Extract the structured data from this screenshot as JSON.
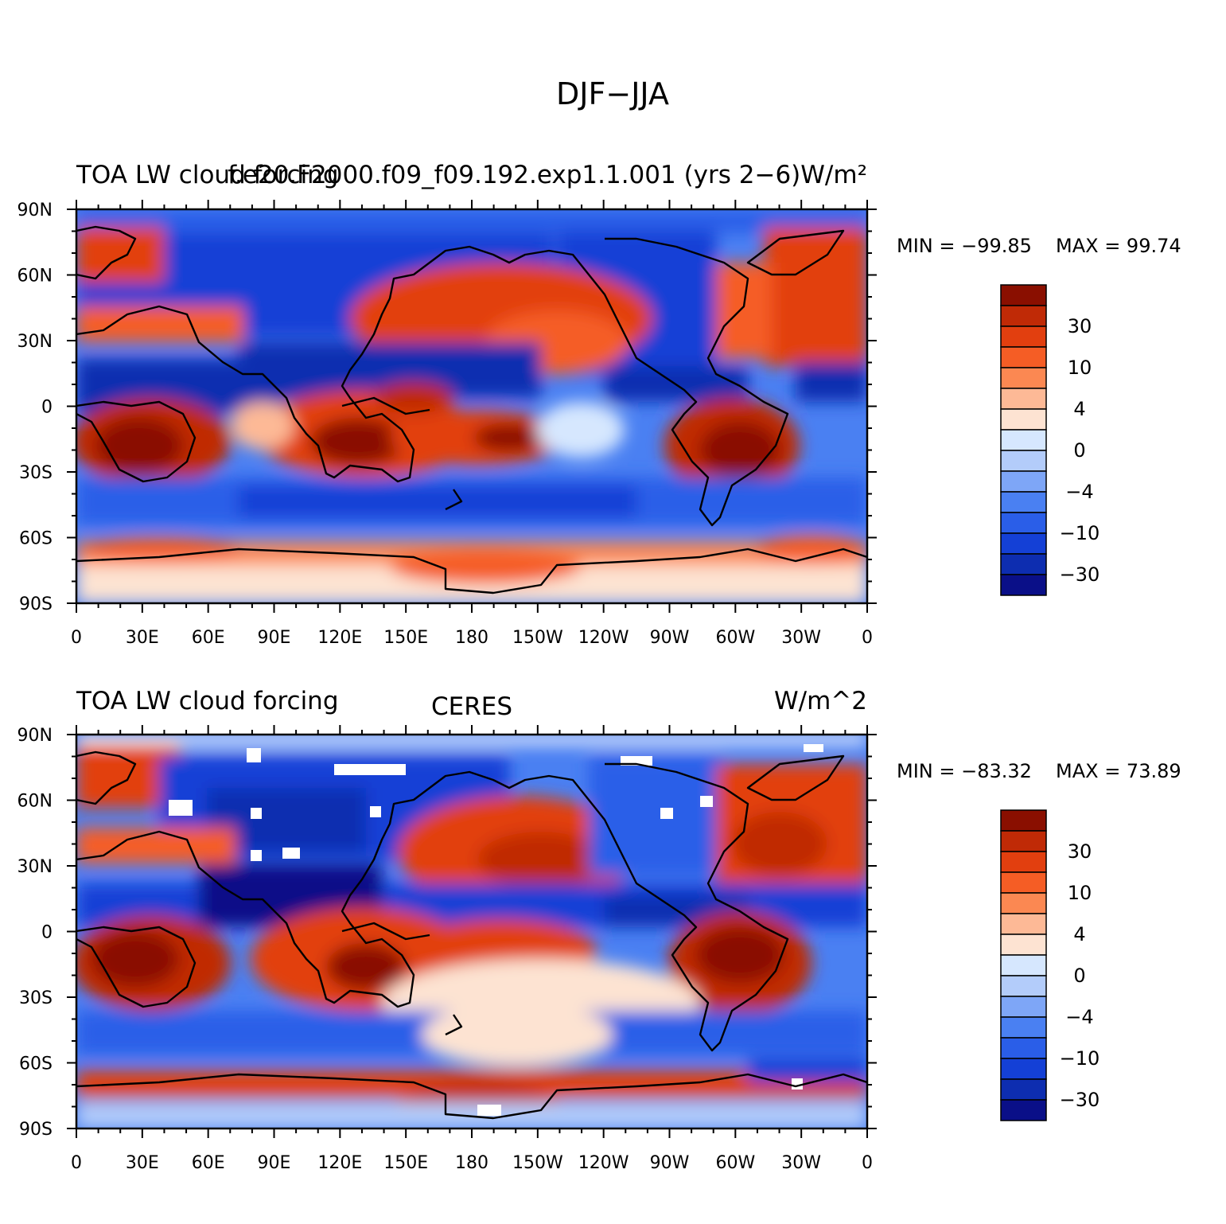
{
  "figure": {
    "title": "DJF−JJA"
  },
  "longitude_ticks": [
    "0",
    "30E",
    "60E",
    "90E",
    "120E",
    "150E",
    "180",
    "150W",
    "120W",
    "90W",
    "60W",
    "30W",
    "0"
  ],
  "latitude_ticks": [
    "90N",
    "60N",
    "30N",
    "0",
    "30S",
    "60S",
    "90S"
  ],
  "colors": {
    "levels": [
      "#0a0f88",
      "#0d2db0",
      "#1440d6",
      "#2a5ee8",
      "#4a80f2",
      "#7ea6f7",
      "#b3ccfa",
      "#d6e7fe",
      "#fde3d2",
      "#fdb996",
      "#fb8852",
      "#f55d25",
      "#e23f0f",
      "#c02a06",
      "#8a0f00"
    ],
    "coast": "#000000"
  },
  "colorbar_labels": [
    "30",
    "10",
    "4",
    "0",
    "−4",
    "−10",
    "−30"
  ],
  "panels": [
    {
      "id": "model",
      "left_title": "TOA LW cloud forcing",
      "center_title": "",
      "right_title": "",
      "overlay_title": "f.e20.F2000.f09_f09.192.exp1.1.001 (yrs 2−6)W/m²",
      "min_label": "MIN = −99.85",
      "max_label": "MAX =  99.74"
    },
    {
      "id": "obs",
      "left_title": "TOA LW cloud forcing",
      "center_title": "CERES",
      "right_title": "W/m^2",
      "overlay_title": "",
      "min_label": "MIN = −83.32",
      "max_label": "MAX =  73.89"
    }
  ]
}
